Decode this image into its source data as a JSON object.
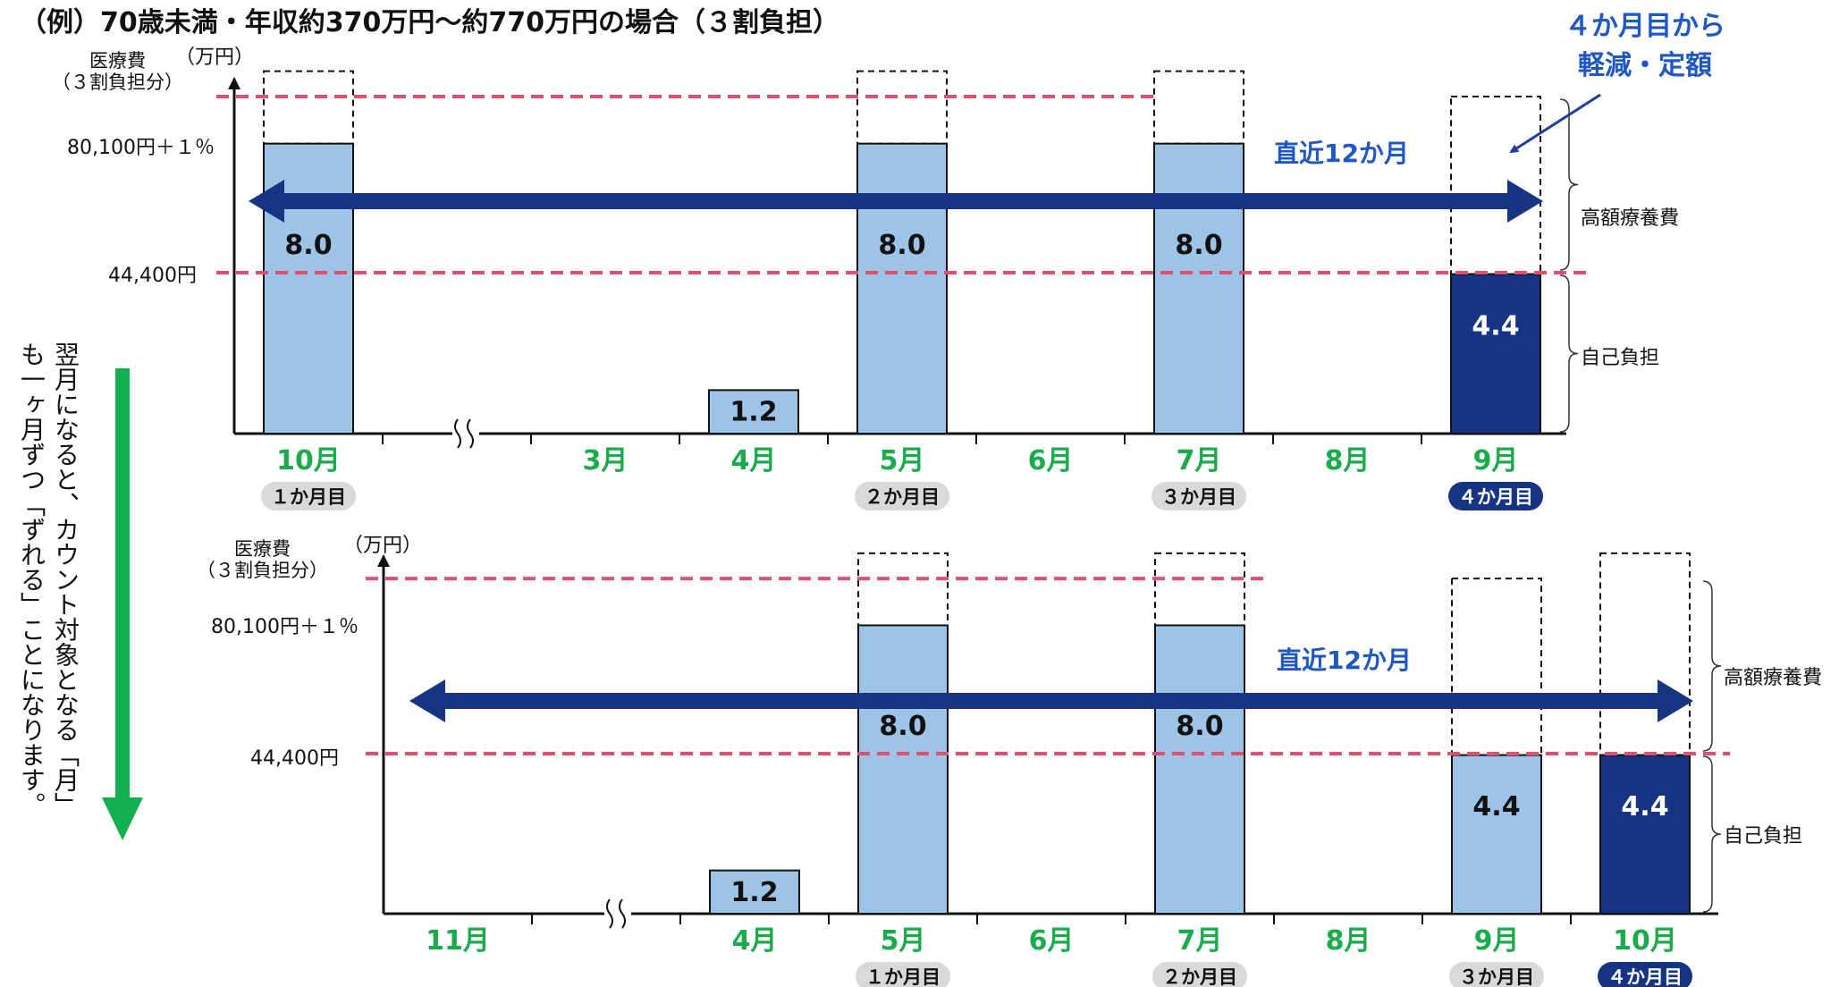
{
  "header": "（例）70歳未満・年収約370万円～約770万円の場合（３割負担）",
  "note": [
    "４か月目から",
    "軽減・定額"
  ],
  "vertical_text": [
    "翌月になると、カウント対象となる「月」",
    "も一ヶ月ずつ「ずれる」ことになります。"
  ],
  "colors": {
    "bar_light": "#9dc3e6",
    "bar_dark": "#173484",
    "arrow": "#173484",
    "dashed_line": "#e0506e",
    "month_green": "#1aab4b",
    "down_arrow": "#12b050",
    "badge_gray": "#d9d9d9",
    "badge_dark": "#173484",
    "accent_text": "#1f57c3"
  },
  "chart_data": [
    {
      "type": "bar",
      "ylabel": [
        "医療費",
        "（３割負担分）"
      ],
      "yunit": "（万円）",
      "ref_lines": [
        {
          "label": "80,100円＋１％",
          "value": 9.3
        },
        {
          "label": "44,400円",
          "value": 4.44
        }
      ],
      "categories": [
        "10月",
        "",
        "3月",
        "4月",
        "5月",
        "6月",
        "7月",
        "8月",
        "9月"
      ],
      "values": [
        8.0,
        null,
        null,
        1.2,
        8.0,
        null,
        8.0,
        null,
        4.4
      ],
      "value_labels": [
        "8.0",
        "",
        "",
        "1.2",
        "8.0",
        "",
        "8.0",
        "",
        "4.4"
      ],
      "highlight": [
        false,
        false,
        false,
        false,
        false,
        false,
        false,
        false,
        true
      ],
      "dashed_cap": [
        10.0,
        null,
        null,
        null,
        10.0,
        null,
        10.0,
        null,
        9.3
      ],
      "badges": [
        "１か月目",
        "",
        "",
        "",
        "２か月目",
        "",
        "３か月目",
        "",
        "４か月目"
      ],
      "badge_highlight": [
        false,
        false,
        false,
        false,
        false,
        false,
        false,
        false,
        true
      ],
      "axis_break_after": 0,
      "recent_label": "直近12か月",
      "brace_labels": [
        "高額療養費",
        "自己負担"
      ]
    },
    {
      "type": "bar",
      "ylabel": [
        "医療費",
        "（３割負担分）"
      ],
      "yunit": "（万円）",
      "ref_lines": [
        {
          "label": "80,100円＋１％",
          "value": 9.3
        },
        {
          "label": "44,400円",
          "value": 4.44
        }
      ],
      "categories": [
        "11月",
        "",
        "4月",
        "5月",
        "6月",
        "7月",
        "8月",
        "9月",
        "10月"
      ],
      "values": [
        null,
        null,
        1.2,
        8.0,
        null,
        8.0,
        null,
        4.4,
        4.4
      ],
      "value_labels": [
        "",
        "",
        "1.2",
        "8.0",
        "",
        "8.0",
        "",
        "4.4",
        "4.4"
      ],
      "highlight": [
        false,
        false,
        false,
        false,
        false,
        false,
        false,
        false,
        true
      ],
      "dashed_cap": [
        null,
        null,
        null,
        10.0,
        null,
        10.0,
        null,
        9.3,
        10.0
      ],
      "badges": [
        "",
        "",
        "",
        "１か月目",
        "",
        "２か月目",
        "",
        "３か月目",
        "４か月目"
      ],
      "badge_highlight": [
        false,
        false,
        false,
        false,
        false,
        false,
        false,
        false,
        true
      ],
      "axis_break_after": 0,
      "recent_label": "直近12か月",
      "brace_labels": [
        "高額療養費",
        "自己負担"
      ]
    }
  ]
}
